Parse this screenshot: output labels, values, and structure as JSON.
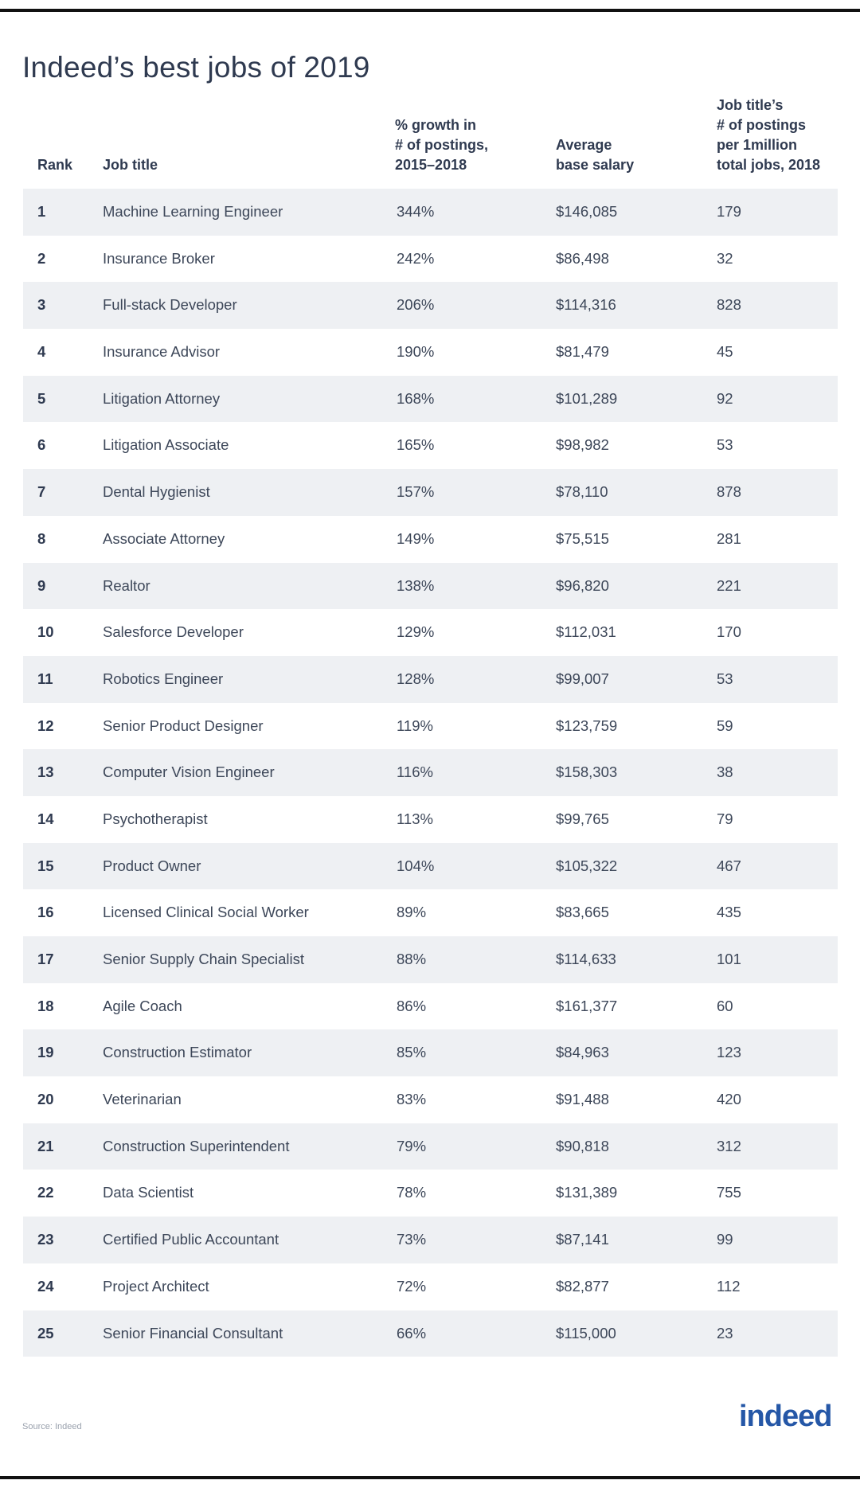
{
  "title": "Indeed’s best jobs of 2019",
  "source": "Source: Indeed",
  "logo": "indeed",
  "colors": {
    "shade": "#eef0f3",
    "text": "#2f3a50",
    "logo": "#2557a7"
  },
  "chart_data": {
    "type": "table",
    "title": "Indeed’s best jobs of 2019",
    "columns": {
      "rank": [
        "Rank"
      ],
      "title": [
        "Job title"
      ],
      "growth": [
        "% growth in",
        "# of postings,",
        "2015–2018"
      ],
      "salary": [
        "Average",
        "base salary"
      ],
      "postings": [
        "Job title’s",
        "# of postings",
        "per 1million",
        "total jobs, 2018"
      ]
    },
    "rows": [
      {
        "rank": "1",
        "title": "Machine Learning Engineer",
        "growth": "344%",
        "salary": "$146,085",
        "postings": "179"
      },
      {
        "rank": "2",
        "title": "Insurance Broker",
        "growth": "242%",
        "salary": "$86,498",
        "postings": "32"
      },
      {
        "rank": "3",
        "title": "Full-stack Developer",
        "growth": "206%",
        "salary": "$114,316",
        "postings": "828"
      },
      {
        "rank": "4",
        "title": "Insurance Advisor",
        "growth": "190%",
        "salary": "$81,479",
        "postings": "45"
      },
      {
        "rank": "5",
        "title": "Litigation Attorney",
        "growth": "168%",
        "salary": "$101,289",
        "postings": "92"
      },
      {
        "rank": "6",
        "title": "Litigation Associate",
        "growth": "165%",
        "salary": "$98,982",
        "postings": "53"
      },
      {
        "rank": "7",
        "title": "Dental Hygienist",
        "growth": "157%",
        "salary": "$78,110",
        "postings": "878"
      },
      {
        "rank": "8",
        "title": "Associate Attorney",
        "growth": "149%",
        "salary": "$75,515",
        "postings": "281"
      },
      {
        "rank": "9",
        "title": "Realtor",
        "growth": "138%",
        "salary": "$96,820",
        "postings": "221"
      },
      {
        "rank": "10",
        "title": "Salesforce Developer",
        "growth": "129%",
        "salary": "$112,031",
        "postings": "170"
      },
      {
        "rank": "11",
        "title": "Robotics Engineer",
        "growth": "128%",
        "salary": "$99,007",
        "postings": "53"
      },
      {
        "rank": "12",
        "title": "Senior Product Designer",
        "growth": "119%",
        "salary": "$123,759",
        "postings": "59"
      },
      {
        "rank": "13",
        "title": "Computer Vision Engineer",
        "growth": "116%",
        "salary": "$158,303",
        "postings": "38"
      },
      {
        "rank": "14",
        "title": "Psychotherapist",
        "growth": "113%",
        "salary": "$99,765",
        "postings": "79"
      },
      {
        "rank": "15",
        "title": "Product Owner",
        "growth": "104%",
        "salary": "$105,322",
        "postings": "467"
      },
      {
        "rank": "16",
        "title": "Licensed Clinical Social Worker",
        "growth": "89%",
        "salary": "$83,665",
        "postings": "435"
      },
      {
        "rank": "17",
        "title": "Senior Supply Chain Specialist",
        "growth": "88%",
        "salary": "$114,633",
        "postings": "101"
      },
      {
        "rank": "18",
        "title": "Agile Coach",
        "growth": "86%",
        "salary": "$161,377",
        "postings": "60"
      },
      {
        "rank": "19",
        "title": "Construction Estimator",
        "growth": "85%",
        "salary": "$84,963",
        "postings": "123"
      },
      {
        "rank": "20",
        "title": "Veterinarian",
        "growth": "83%",
        "salary": "$91,488",
        "postings": "420"
      },
      {
        "rank": "21",
        "title": "Construction Superintendent",
        "growth": "79%",
        "salary": "$90,818",
        "postings": "312"
      },
      {
        "rank": "22",
        "title": "Data Scientist",
        "growth": "78%",
        "salary": "$131,389",
        "postings": "755"
      },
      {
        "rank": "23",
        "title": "Certified Public Accountant",
        "growth": "73%",
        "salary": "$87,141",
        "postings": "99"
      },
      {
        "rank": "24",
        "title": "Project Architect",
        "growth": "72%",
        "salary": "$82,877",
        "postings": "112"
      },
      {
        "rank": "25",
        "title": "Senior Financial Consultant",
        "growth": "66%",
        "salary": "$115,000",
        "postings": "23"
      }
    ]
  }
}
